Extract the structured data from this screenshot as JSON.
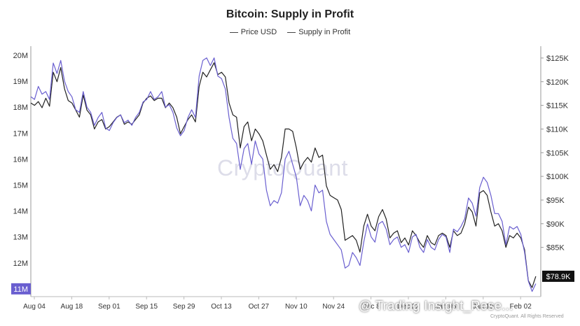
{
  "chart_data": {
    "type": "line",
    "title": "Bitcoin: Supply in Profit",
    "legend": [
      "Price USD",
      "Supply in Profit"
    ],
    "legend_position": "top-center",
    "x_ticks": [
      "Aug 04",
      "Aug 18",
      "Sep 01",
      "Sep 15",
      "Sep 29",
      "Oct 13",
      "Oct 27",
      "Nov 10",
      "Nov 24",
      "Dec 8",
      "Dec 22",
      "Jan 05",
      "Jan 19",
      "Feb 02"
    ],
    "left_axis": {
      "ticks": [
        "20M",
        "19M",
        "18M",
        "17M",
        "16M",
        "15M",
        "14M",
        "13M",
        "12M",
        "11M"
      ],
      "values": [
        20,
        19,
        18,
        17,
        16,
        15,
        14,
        13,
        12,
        11
      ],
      "range": [
        10.7,
        20.35
      ],
      "unit": "M",
      "highlight_label": "11M",
      "highlight_color": "#6a5fd0"
    },
    "right_axis": {
      "ticks": [
        "$125K",
        "$120K",
        "$115K",
        "$110K",
        "$105K",
        "$100K",
        "$95K",
        "$90K",
        "$85K"
      ],
      "values": [
        125,
        120,
        115,
        110,
        105,
        100,
        95,
        90,
        85
      ],
      "range": [
        74.6,
        127.5
      ],
      "unit": "K USD",
      "current_label": "$78.9K",
      "current_value": 78.9,
      "current_color": "#111111"
    },
    "series": [
      {
        "name": "Price USD",
        "axis": "right",
        "color": "#222222",
        "x": [
          0,
          0.1,
          0.2,
          0.3,
          0.4,
          0.5,
          0.6,
          0.7,
          0.8,
          0.9,
          1.0,
          1.1,
          1.2,
          1.3,
          1.4,
          1.5,
          1.6,
          1.7,
          1.8,
          1.9,
          2.0,
          2.1,
          2.2,
          2.3,
          2.4,
          2.5,
          2.6,
          2.7,
          2.8,
          2.9,
          3.0,
          3.1,
          3.2,
          3.3,
          3.4,
          3.5,
          3.6,
          3.7,
          3.8,
          3.9,
          4.0,
          4.1,
          4.2,
          4.3,
          4.4,
          4.5,
          4.6,
          4.7,
          4.8,
          4.9,
          5.0,
          5.1,
          5.2,
          5.3,
          5.4,
          5.5,
          5.6,
          5.7,
          5.8,
          5.9,
          6.0,
          6.1,
          6.2,
          6.3,
          6.4,
          6.5,
          6.6,
          6.7,
          6.8,
          6.9,
          7.0,
          7.1,
          7.2,
          7.3,
          7.4,
          7.5,
          7.6,
          7.7,
          7.8,
          7.9,
          8.0,
          8.1,
          8.2,
          8.3,
          8.4,
          8.5,
          8.6,
          8.7,
          8.8,
          8.9,
          9.0,
          9.1,
          9.2,
          9.3,
          9.4,
          9.5,
          9.6,
          9.7,
          9.8,
          9.9,
          10.0,
          10.1,
          10.2,
          10.3,
          10.4,
          10.5,
          10.6,
          10.7,
          10.8,
          10.9,
          11.0,
          11.1,
          11.2,
          11.3,
          11.4,
          11.5,
          11.6,
          11.7,
          11.8,
          11.9,
          12.0,
          12.1,
          12.2,
          12.3,
          12.4,
          12.5,
          12.6,
          12.7,
          12.8,
          12.9,
          13.0,
          13.1,
          13.2,
          13.3,
          13.4,
          13.5
        ],
        "values": [
          115.5,
          115.0,
          115.8,
          114.5,
          116.5,
          114.8,
          122.0,
          120.0,
          123.0,
          118.5,
          116.0,
          115.5,
          114.0,
          112.5,
          117.2,
          114.0,
          113.0,
          110.0,
          111.5,
          112.0,
          110.0,
          110.5,
          111.5,
          112.5,
          113.0,
          111.0,
          111.5,
          111.0,
          112.0,
          113.0,
          115.5,
          116.5,
          117.0,
          116.0,
          116.5,
          116.5,
          114.5,
          115.5,
          114.5,
          112.5,
          109.0,
          110.5,
          112.0,
          113.0,
          111.5,
          119.0,
          122.0,
          121.0,
          122.5,
          124.0,
          121.5,
          122.0,
          121.0,
          115.5,
          113.0,
          112.5,
          106.0,
          110.5,
          111.5,
          107.5,
          110.0,
          109.0,
          107.5,
          104.5,
          101.5,
          102.5,
          101.0,
          104.0,
          110.0,
          110.0,
          109.5,
          106.0,
          101.5,
          103.0,
          104.0,
          103.0,
          106.0,
          104.0,
          104.5,
          98.0,
          96.0,
          95.5,
          95.0,
          93.0,
          86.5,
          87.0,
          87.5,
          86.5,
          84.0,
          89.5,
          92.0,
          89.5,
          88.5,
          91.5,
          93.0,
          91.0,
          87.0,
          88.0,
          88.5,
          86.0,
          87.0,
          85.5,
          88.5,
          87.5,
          86.0,
          85.0,
          87.5,
          86.0,
          85.5,
          87.5,
          88.0,
          87.5,
          85.0,
          88.5,
          87.5,
          88.0,
          90.0,
          93.5,
          92.5,
          89.5,
          96.5,
          97.0,
          96.0,
          92.5,
          89.5,
          90.0,
          88.5,
          85.0,
          87.5,
          87.0,
          88.0,
          87.0,
          84.5,
          78.0,
          76.5,
          78.9
        ]
      },
      {
        "name": "Supply in Profit",
        "axis": "left",
        "color": "#6a5fd0",
        "x": [
          0,
          0.1,
          0.2,
          0.3,
          0.4,
          0.5,
          0.6,
          0.7,
          0.8,
          0.9,
          1.0,
          1.1,
          1.2,
          1.3,
          1.4,
          1.5,
          1.6,
          1.7,
          1.8,
          1.9,
          2.0,
          2.1,
          2.2,
          2.3,
          2.4,
          2.5,
          2.6,
          2.7,
          2.8,
          2.9,
          3.0,
          3.1,
          3.2,
          3.3,
          3.4,
          3.5,
          3.6,
          3.7,
          3.8,
          3.9,
          4.0,
          4.1,
          4.2,
          4.3,
          4.4,
          4.5,
          4.6,
          4.7,
          4.8,
          4.9,
          5.0,
          5.1,
          5.2,
          5.3,
          5.4,
          5.5,
          5.6,
          5.7,
          5.8,
          5.9,
          6.0,
          6.1,
          6.2,
          6.3,
          6.4,
          6.5,
          6.6,
          6.7,
          6.8,
          6.9,
          7.0,
          7.1,
          7.2,
          7.3,
          7.4,
          7.5,
          7.6,
          7.7,
          7.8,
          7.9,
          8.0,
          8.1,
          8.2,
          8.3,
          8.4,
          8.5,
          8.6,
          8.7,
          8.8,
          8.9,
          9.0,
          9.1,
          9.2,
          9.3,
          9.4,
          9.5,
          9.6,
          9.7,
          9.8,
          9.9,
          10.0,
          10.1,
          10.2,
          10.3,
          10.4,
          10.5,
          10.6,
          10.7,
          10.8,
          10.9,
          11.0,
          11.1,
          11.2,
          11.3,
          11.4,
          11.5,
          11.6,
          11.7,
          11.8,
          11.9,
          12.0,
          12.1,
          12.2,
          12.3,
          12.4,
          12.5,
          12.6,
          12.7,
          12.8,
          12.9,
          13.0,
          13.1,
          13.2,
          13.3,
          13.4,
          13.5
        ],
        "values": [
          18.4,
          18.3,
          18.8,
          18.5,
          18.6,
          18.3,
          19.7,
          19.3,
          19.8,
          19.0,
          18.6,
          18.4,
          17.9,
          17.8,
          18.6,
          18.0,
          17.8,
          17.3,
          17.6,
          17.8,
          17.2,
          17.1,
          17.4,
          17.6,
          17.7,
          17.4,
          17.5,
          17.3,
          17.6,
          17.8,
          18.2,
          18.3,
          18.6,
          18.3,
          18.4,
          18.6,
          18.0,
          18.1,
          17.8,
          17.2,
          16.9,
          17.1,
          17.6,
          17.9,
          17.6,
          19.2,
          19.8,
          19.9,
          19.6,
          19.9,
          19.2,
          19.1,
          18.7,
          17.6,
          16.8,
          16.6,
          15.6,
          16.4,
          16.6,
          15.8,
          16.7,
          16.2,
          16.0,
          14.8,
          14.2,
          14.4,
          14.3,
          14.7,
          16.0,
          16.3,
          15.8,
          15.3,
          14.2,
          14.6,
          14.4,
          14.0,
          15.0,
          14.7,
          14.8,
          13.6,
          13.1,
          12.9,
          12.7,
          12.5,
          11.8,
          11.9,
          12.4,
          12.2,
          11.9,
          12.8,
          13.5,
          13.0,
          12.8,
          13.5,
          13.6,
          13.3,
          12.7,
          12.9,
          13.0,
          12.6,
          12.7,
          12.4,
          13.0,
          13.1,
          12.6,
          12.4,
          12.9,
          12.6,
          12.5,
          12.9,
          13.1,
          13.0,
          12.4,
          13.3,
          13.2,
          13.4,
          13.7,
          14.5,
          14.3,
          13.8,
          14.9,
          15.3,
          15.1,
          14.6,
          13.9,
          13.9,
          13.6,
          12.7,
          13.4,
          13.3,
          13.4,
          13.1,
          12.4,
          11.3,
          10.9,
          11.2
        ]
      }
    ]
  },
  "watermark": "CryptoQuant",
  "overlay_watermark": "@ Trading Insight_Rese...",
  "credit": "CryptoQuant. All Rights Reserved"
}
